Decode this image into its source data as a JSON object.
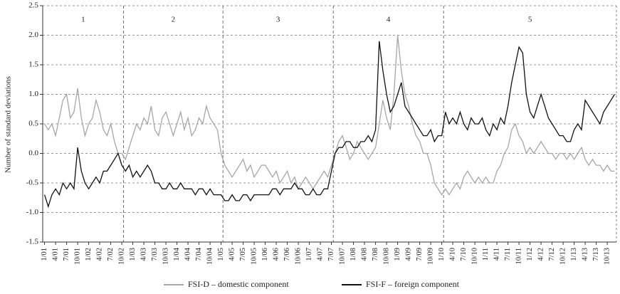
{
  "chart_data": {
    "type": "line",
    "ylabel": "Number of standard deviations",
    "categories": [
      "1/01",
      null,
      null,
      "4/01",
      null,
      null,
      "7/01",
      null,
      null,
      "10/01",
      null,
      null,
      "1/02",
      null,
      null,
      "4/02",
      null,
      null,
      "7/02",
      null,
      null,
      "10/02",
      null,
      null,
      "1/03",
      null,
      null,
      "4/03",
      null,
      null,
      "7/03",
      null,
      null,
      "10/03",
      null,
      null,
      "1/04",
      null,
      null,
      "4/04",
      null,
      null,
      "7/04",
      null,
      null,
      "10/04",
      null,
      null,
      "1/05",
      null,
      null,
      "4/05",
      null,
      null,
      "7/05",
      null,
      null,
      "10/05",
      null,
      null,
      "1/06",
      null,
      null,
      "4/06",
      null,
      null,
      "7/06",
      null,
      null,
      "10/06",
      null,
      null,
      "1/07",
      null,
      null,
      "4/07",
      null,
      null,
      "7/07",
      null,
      null,
      "10/07",
      null,
      null,
      "1/08",
      null,
      null,
      "4/08",
      null,
      null,
      "7/08",
      null,
      null,
      "10/08",
      null,
      null,
      "1/09",
      null,
      null,
      "4/09",
      null,
      null,
      "7/09",
      null,
      null,
      "10/09",
      null,
      null,
      "1/10",
      null,
      null,
      "4/10",
      null,
      null,
      "7/10",
      null,
      null,
      "10/10",
      null,
      null,
      "1/11",
      null,
      null,
      "4/11",
      null,
      null,
      "7/11",
      null,
      null,
      "10/11",
      null,
      null,
      "1/12",
      null,
      null,
      "4/12",
      null,
      null,
      "7/12",
      null,
      null,
      "10/12",
      null,
      null,
      "1/13",
      null,
      null,
      "4/13",
      null,
      null,
      "7/13",
      null,
      null,
      "10/13",
      null,
      null
    ],
    "series": [
      {
        "name": "FSI-D – domestic component",
        "color": "#a6a6a6",
        "values": [
          0.5,
          0.4,
          0.5,
          0.3,
          0.6,
          0.9,
          1.0,
          0.6,
          0.7,
          1.1,
          0.6,
          0.3,
          0.5,
          0.6,
          0.9,
          0.7,
          0.4,
          0.3,
          0.5,
          0.2,
          0.0,
          0.0,
          -0.1,
          0.1,
          0.3,
          0.5,
          0.4,
          0.6,
          0.5,
          0.8,
          0.4,
          0.3,
          0.6,
          0.7,
          0.5,
          0.3,
          0.5,
          0.7,
          0.4,
          0.6,
          0.3,
          0.4,
          0.6,
          0.5,
          0.8,
          0.6,
          0.5,
          0.4,
          0.0,
          -0.2,
          -0.3,
          -0.4,
          -0.3,
          -0.2,
          -0.1,
          -0.3,
          -0.2,
          -0.4,
          -0.3,
          -0.2,
          -0.2,
          -0.3,
          -0.4,
          -0.3,
          -0.5,
          -0.4,
          -0.3,
          -0.5,
          -0.4,
          -0.6,
          -0.5,
          -0.4,
          -0.5,
          -0.6,
          -0.5,
          -0.4,
          -0.3,
          -0.4,
          -0.2,
          0.0,
          0.2,
          0.3,
          0.1,
          -0.1,
          0.0,
          0.2,
          0.1,
          0.0,
          -0.1,
          0.0,
          0.1,
          0.5,
          0.9,
          0.6,
          0.4,
          1.0,
          2.0,
          1.4,
          1.0,
          0.8,
          0.5,
          0.3,
          0.2,
          0.0,
          0.0,
          -0.2,
          -0.5,
          -0.6,
          -0.7,
          -0.6,
          -0.7,
          -0.6,
          -0.5,
          -0.6,
          -0.4,
          -0.3,
          -0.4,
          -0.5,
          -0.4,
          -0.5,
          -0.4,
          -0.5,
          -0.5,
          -0.3,
          -0.2,
          0.0,
          0.1,
          0.4,
          0.5,
          0.3,
          0.2,
          0.0,
          0.1,
          0.0,
          0.1,
          0.2,
          0.1,
          0.0,
          0.0,
          -0.1,
          0.0,
          0.0,
          -0.1,
          0.0,
          -0.1,
          0.0,
          0.1,
          -0.1,
          -0.2,
          -0.1,
          -0.2,
          -0.2,
          -0.3,
          -0.2,
          -0.3,
          -0.3
        ]
      },
      {
        "name": "FSI-F – foreign component",
        "color": "#111111",
        "values": [
          -0.7,
          -0.9,
          -0.7,
          -0.6,
          -0.7,
          -0.5,
          -0.6,
          -0.5,
          -0.6,
          0.1,
          -0.3,
          -0.5,
          -0.6,
          -0.5,
          -0.4,
          -0.5,
          -0.3,
          -0.3,
          -0.2,
          -0.1,
          0.0,
          -0.2,
          -0.3,
          -0.2,
          -0.4,
          -0.3,
          -0.4,
          -0.3,
          -0.2,
          -0.3,
          -0.5,
          -0.5,
          -0.6,
          -0.6,
          -0.5,
          -0.6,
          -0.6,
          -0.5,
          -0.6,
          -0.6,
          -0.6,
          -0.7,
          -0.6,
          -0.6,
          -0.7,
          -0.6,
          -0.7,
          -0.7,
          -0.7,
          -0.8,
          -0.8,
          -0.7,
          -0.8,
          -0.8,
          -0.7,
          -0.7,
          -0.8,
          -0.7,
          -0.7,
          -0.7,
          -0.7,
          -0.7,
          -0.6,
          -0.6,
          -0.7,
          -0.6,
          -0.6,
          -0.6,
          -0.5,
          -0.6,
          -0.6,
          -0.7,
          -0.7,
          -0.6,
          -0.7,
          -0.7,
          -0.6,
          -0.6,
          -0.3,
          0.0,
          0.1,
          0.1,
          0.2,
          0.2,
          0.1,
          0.1,
          0.2,
          0.2,
          0.3,
          0.2,
          0.4,
          1.9,
          1.4,
          1.0,
          0.7,
          0.8,
          1.0,
          1.2,
          0.8,
          0.7,
          0.6,
          0.5,
          0.4,
          0.3,
          0.3,
          0.4,
          0.2,
          0.3,
          0.3,
          0.7,
          0.5,
          0.6,
          0.5,
          0.7,
          0.5,
          0.4,
          0.6,
          0.5,
          0.5,
          0.6,
          0.4,
          0.3,
          0.5,
          0.4,
          0.6,
          0.5,
          0.8,
          1.2,
          1.5,
          1.8,
          1.7,
          1.0,
          0.7,
          0.6,
          0.8,
          1.0,
          0.8,
          0.6,
          0.5,
          0.4,
          0.3,
          0.3,
          0.2,
          0.2,
          0.4,
          0.5,
          0.4,
          0.9,
          0.8,
          0.7,
          0.6,
          0.5,
          0.7,
          0.8,
          0.9,
          1.0
        ]
      }
    ],
    "ylim": [
      -1.5,
      2.5
    ],
    "yticks": [
      {
        "value": -1.5,
        "label": "-1.5"
      },
      {
        "value": -1,
        "label": "-1.0"
      },
      {
        "value": -0.5,
        "label": "-0.5"
      },
      {
        "value": 0,
        "label": "0.0"
      },
      0.5,
      {
        "value": 1,
        "label": "1.0"
      },
      1.5,
      {
        "value": 2,
        "label": "2.0"
      },
      2.5
    ],
    "grid": true,
    "period_labels": [
      "1",
      "2",
      "3",
      "4",
      "5"
    ],
    "period_breaks": [
      "10/02",
      "1/05",
      "7/07",
      "1/10"
    ],
    "legend": "bottom"
  }
}
